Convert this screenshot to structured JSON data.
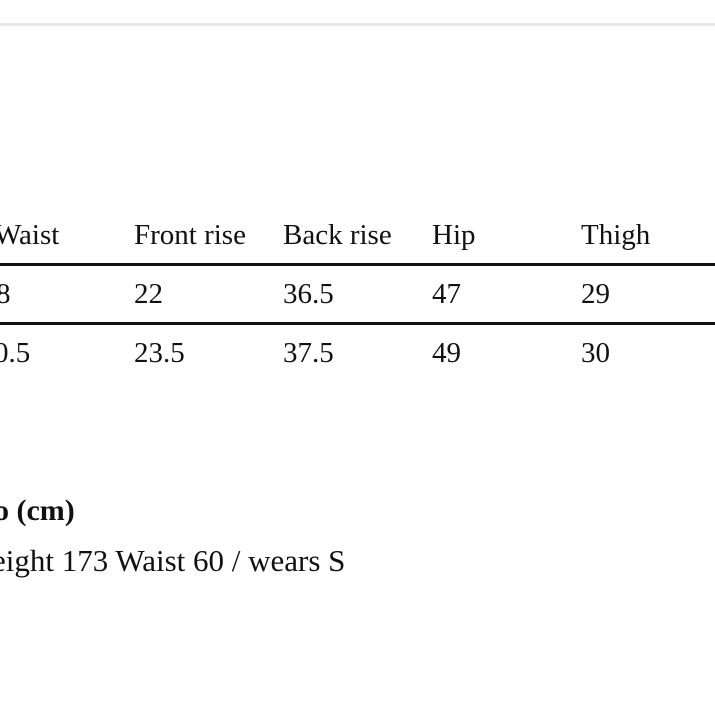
{
  "table": {
    "header": [
      "Waist",
      "Front rise",
      "Back rise",
      "Hip",
      "Thigh"
    ],
    "rows": [
      [
        "8",
        "22",
        "36.5",
        "47",
        "29"
      ],
      [
        "0.5",
        "23.5",
        "37.5",
        "49",
        "30"
      ]
    ]
  },
  "info": {
    "title": "o (cm)",
    "text": "eight 173 Waist 60 / wears S"
  }
}
